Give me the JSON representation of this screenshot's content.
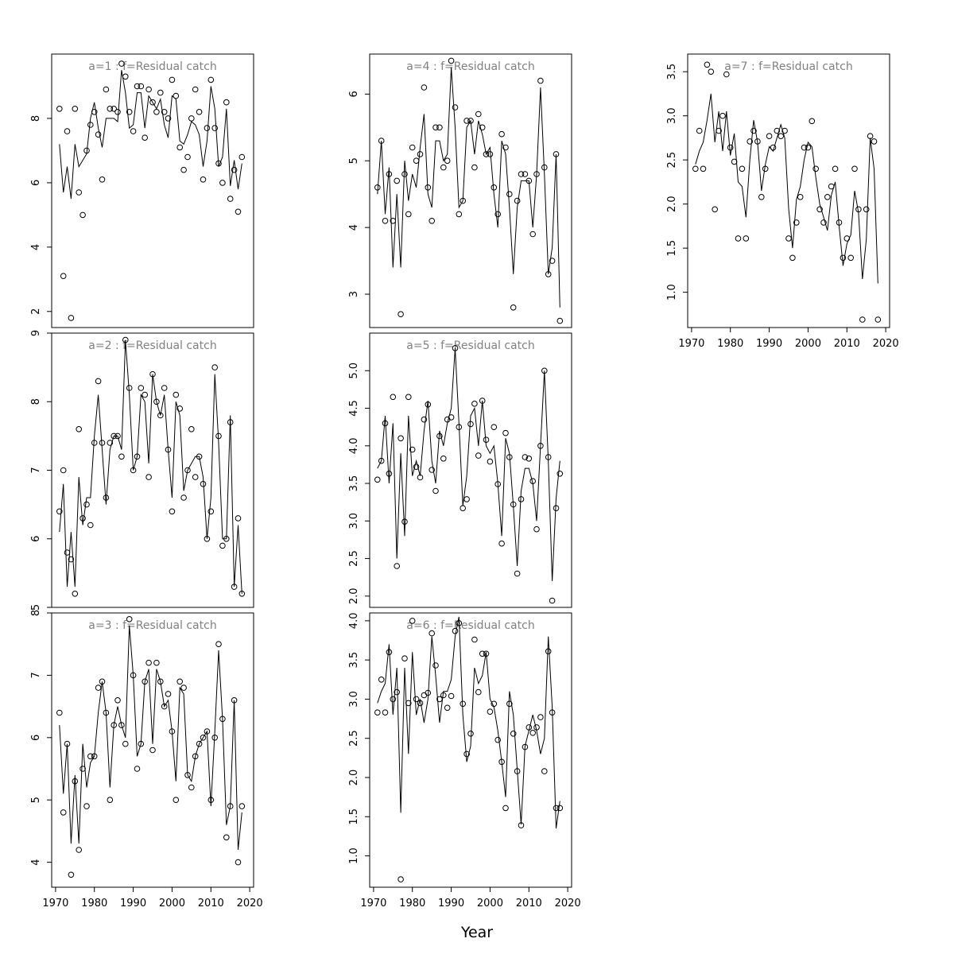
{
  "chart_data": {
    "type": "scatter",
    "xlabel": "Year",
    "x_ticks": [
      "1970",
      "1980",
      "1990",
      "2000",
      "2010",
      "2020"
    ],
    "x": [
      1971,
      1972,
      1973,
      1974,
      1975,
      1976,
      1977,
      1978,
      1979,
      1980,
      1981,
      1982,
      1983,
      1984,
      1985,
      1986,
      1987,
      1988,
      1989,
      1990,
      1991,
      1992,
      1993,
      1994,
      1995,
      1996,
      1997,
      1998,
      1999,
      2000,
      2001,
      2002,
      2003,
      2004,
      2005,
      2006,
      2007,
      2008,
      2009,
      2010,
      2011,
      2012,
      2013,
      2014,
      2015,
      2016,
      2017,
      2018
    ],
    "xlim": [
      1969,
      2021
    ],
    "panels": [
      {
        "title": "a=1  :  f=Residual catch",
        "ylim": [
          1.5,
          10
        ],
        "y_ticks": [
          2,
          4,
          6,
          8
        ],
        "series": [
          {
            "type": "points",
            "values": [
              8.3,
              3.1,
              7.6,
              1.8,
              8.3,
              5.7,
              5.0,
              7.0,
              7.8,
              8.2,
              7.5,
              6.1,
              8.9,
              8.3,
              8.3,
              8.2,
              9.7,
              9.3,
              8.2,
              7.6,
              9.0,
              9.0,
              7.4,
              8.9,
              8.5,
              8.2,
              8.8,
              8.2,
              8.0,
              9.2,
              8.7,
              7.1,
              6.4,
              6.8,
              8.0,
              8.9,
              8.2,
              6.1,
              7.7,
              9.2,
              7.7,
              6.6,
              6.0,
              8.5,
              5.5,
              6.4,
              5.1,
              6.8
            ]
          },
          {
            "type": "line",
            "values": [
              7.2,
              5.7,
              6.5,
              5.5,
              7.2,
              6.5,
              6.7,
              6.9,
              8.0,
              8.5,
              7.7,
              7.1,
              8.0,
              8.0,
              8.0,
              7.9,
              9.5,
              8.8,
              7.7,
              7.8,
              8.8,
              8.8,
              7.7,
              8.7,
              8.5,
              8.3,
              8.6,
              7.8,
              7.4,
              8.7,
              8.6,
              7.3,
              7.2,
              7.5,
              7.9,
              7.8,
              7.5,
              6.5,
              7.3,
              9.0,
              8.3,
              6.5,
              6.8,
              8.3,
              5.9,
              6.7,
              5.8,
              6.6
            ]
          }
        ]
      },
      {
        "title": "a=2  :  f=Residual catch",
        "ylim": [
          5,
          9
        ],
        "y_ticks": [
          5,
          6,
          7,
          8,
          9
        ],
        "series": [
          {
            "type": "points",
            "values": [
              6.4,
              7.0,
              5.8,
              5.7,
              5.2,
              7.6,
              6.3,
              6.5,
              6.2,
              7.4,
              8.3,
              7.4,
              6.6,
              7.4,
              7.5,
              7.5,
              7.2,
              8.9,
              8.2,
              7.0,
              7.2,
              8.2,
              8.1,
              6.9,
              8.4,
              8.0,
              7.8,
              8.2,
              7.3,
              6.4,
              8.1,
              7.9,
              6.6,
              7.0,
              7.6,
              6.9,
              7.2,
              6.8,
              6.0,
              6.4,
              8.5,
              7.5,
              5.9,
              6.0,
              7.7,
              5.3,
              6.3,
              5.2
            ]
          },
          {
            "type": "line",
            "values": [
              6.1,
              6.8,
              5.3,
              6.1,
              5.3,
              6.9,
              6.2,
              6.6,
              6.6,
              7.5,
              8.1,
              7.3,
              6.5,
              7.3,
              7.5,
              7.5,
              7.3,
              8.9,
              8.1,
              7.0,
              7.2,
              8.1,
              8.0,
              7.1,
              8.4,
              8.0,
              7.8,
              8.1,
              7.3,
              6.6,
              8.0,
              7.8,
              6.7,
              7.0,
              7.1,
              7.2,
              7.2,
              6.9,
              6.0,
              6.6,
              8.4,
              7.4,
              6.0,
              6.0,
              7.8,
              5.3,
              6.2,
              5.2
            ]
          }
        ]
      },
      {
        "title": "a=3  :  f=Residual catch",
        "ylim": [
          3.6,
          8.0
        ],
        "y_ticks": [
          4,
          5,
          6,
          7,
          8
        ],
        "series": [
          {
            "type": "points",
            "values": [
              6.4,
              4.8,
              5.9,
              3.8,
              5.3,
              4.2,
              5.5,
              4.9,
              5.7,
              5.7,
              6.8,
              6.9,
              6.4,
              5.0,
              6.2,
              6.6,
              6.2,
              5.9,
              7.9,
              7.0,
              5.5,
              5.9,
              6.9,
              7.2,
              5.8,
              7.2,
              6.9,
              6.5,
              6.7,
              6.1,
              5.0,
              6.9,
              6.8,
              5.4,
              5.2,
              5.7,
              5.9,
              6.0,
              6.1,
              5.0,
              6.0,
              7.5,
              6.3,
              4.4,
              4.9,
              6.6,
              4.0,
              4.9
            ]
          },
          {
            "type": "line",
            "values": [
              6.2,
              5.1,
              5.9,
              4.3,
              5.4,
              4.3,
              5.9,
              5.2,
              5.6,
              5.7,
              6.4,
              6.9,
              6.4,
              5.2,
              6.2,
              6.5,
              6.2,
              6.0,
              7.8,
              7.0,
              5.7,
              5.9,
              6.9,
              7.1,
              5.9,
              7.1,
              6.9,
              6.5,
              6.6,
              6.1,
              5.3,
              6.8,
              6.7,
              5.4,
              5.3,
              5.7,
              5.9,
              6.0,
              6.1,
              4.9,
              6.1,
              7.4,
              6.3,
              4.6,
              4.9,
              6.6,
              4.2,
              4.8
            ]
          }
        ]
      },
      {
        "title": "a=4  :  f=Residual catch",
        "ylim": [
          2.5,
          6.6
        ],
        "y_ticks": [
          3,
          4,
          5,
          6
        ],
        "series": [
          {
            "type": "points",
            "values": [
              4.6,
              5.3,
              4.1,
              4.8,
              4.1,
              4.7,
              2.7,
              4.8,
              4.2,
              5.2,
              5.0,
              5.1,
              6.1,
              4.6,
              4.1,
              5.5,
              5.5,
              4.9,
              5.0,
              6.5,
              5.8,
              4.2,
              4.4,
              5.6,
              5.6,
              4.9,
              5.7,
              5.5,
              5.1,
              5.1,
              4.6,
              4.2,
              5.4,
              5.2,
              4.5,
              2.8,
              4.4,
              4.8,
              4.8,
              4.7,
              3.9,
              4.8,
              6.2,
              4.9,
              3.3,
              3.5,
              5.1,
              2.6
            ]
          },
          {
            "type": "line",
            "values": [
              4.5,
              5.3,
              4.2,
              4.9,
              3.4,
              4.5,
              3.4,
              5.0,
              4.4,
              4.8,
              4.6,
              5.2,
              5.7,
              4.5,
              4.3,
              5.3,
              5.3,
              5.0,
              5.1,
              6.4,
              5.5,
              4.3,
              4.4,
              5.5,
              5.6,
              5.1,
              5.6,
              5.4,
              5.1,
              5.2,
              4.5,
              4.0,
              5.3,
              5.1,
              4.3,
              3.3,
              4.3,
              4.7,
              4.7,
              4.7,
              4.0,
              4.8,
              6.1,
              4.8,
              3.3,
              3.7,
              5.1,
              2.8
            ]
          }
        ]
      },
      {
        "title": "a=5  :  f=Residual catch",
        "ylim": [
          1.85,
          5.5
        ],
        "y_ticks": [
          2.0,
          2.5,
          3.0,
          3.5,
          4.0,
          4.5,
          5.0
        ],
        "series": [
          {
            "type": "points",
            "values": [
              3.55,
              3.8,
              4.3,
              3.63,
              4.65,
              2.4,
              4.1,
              2.99,
              4.65,
              3.95,
              3.72,
              3.58,
              4.35,
              4.55,
              3.68,
              3.4,
              4.13,
              3.83,
              4.35,
              4.38,
              5.3,
              4.25,
              3.17,
              3.29,
              4.29,
              4.56,
              3.87,
              4.6,
              4.08,
              3.79,
              4.25,
              3.49,
              2.7,
              4.17,
              3.85,
              3.22,
              2.3,
              3.29,
              3.85,
              3.83,
              3.53,
              2.89,
              4.0,
              5.0,
              3.85,
              1.94,
              3.17,
              3.63
            ]
          },
          {
            "type": "line",
            "values": [
              3.7,
              3.8,
              4.4,
              3.5,
              4.3,
              2.5,
              3.9,
              2.8,
              4.4,
              3.6,
              3.8,
              3.6,
              4.2,
              4.6,
              3.8,
              3.5,
              4.2,
              4.0,
              4.3,
              4.5,
              5.3,
              4.3,
              3.2,
              3.6,
              4.4,
              4.5,
              4.0,
              4.6,
              4.0,
              3.9,
              4.0,
              3.5,
              2.8,
              4.1,
              3.9,
              3.2,
              2.4,
              3.4,
              3.7,
              3.7,
              3.5,
              3.0,
              4.0,
              5.0,
              3.8,
              2.2,
              3.3,
              3.8
            ]
          }
        ]
      },
      {
        "title": "a=6  :  f=Residual catch",
        "ylim": [
          0.6,
          4.1
        ],
        "y_ticks": [
          1.0,
          1.5,
          2.0,
          2.5,
          3.0,
          3.5,
          4.0
        ],
        "series": [
          {
            "type": "points",
            "values": [
              2.83,
              3.25,
              2.83,
              3.6,
              3.0,
              3.09,
              0.7,
              3.52,
              2.95,
              4.0,
              3.0,
              2.95,
              3.05,
              3.08,
              3.84,
              3.43,
              3.0,
              3.05,
              2.89,
              3.04,
              3.87,
              3.97,
              2.94,
              2.3,
              2.56,
              3.76,
              3.09,
              3.58,
              3.58,
              2.84,
              2.94,
              2.48,
              2.2,
              1.61,
              2.94,
              2.56,
              2.08,
              1.39,
              2.39,
              2.64,
              2.57,
              2.64,
              2.77,
              2.08,
              3.61,
              2.83,
              1.61,
              1.61
            ]
          },
          {
            "type": "line",
            "values": [
              2.95,
              3.1,
              3.2,
              3.7,
              2.8,
              3.4,
              1.55,
              3.4,
              2.3,
              3.6,
              2.8,
              3.0,
              2.7,
              3.0,
              3.8,
              3.3,
              2.7,
              3.1,
              3.1,
              3.25,
              3.8,
              4.05,
              2.8,
              2.2,
              2.4,
              3.4,
              3.2,
              3.3,
              3.6,
              3.0,
              2.9,
              2.6,
              2.2,
              1.75,
              3.1,
              2.8,
              2.1,
              1.4,
              2.4,
              2.6,
              2.8,
              2.6,
              2.3,
              2.5,
              3.8,
              2.9,
              1.35,
              1.7
            ]
          }
        ]
      },
      {
        "title": "a=7  :  f=Residual catch",
        "ylim": [
          0.6,
          3.7
        ],
        "y_ticks": [
          1.0,
          1.5,
          2.0,
          2.5,
          3.0,
          3.5
        ],
        "series": [
          {
            "type": "points",
            "values": [
              2.4,
              2.83,
              2.4,
              3.58,
              3.5,
              1.94,
              2.83,
              3.0,
              3.47,
              2.64,
              2.48,
              1.61,
              2.4,
              1.61,
              2.71,
              2.83,
              2.71,
              2.08,
              2.4,
              2.77,
              2.64,
              2.83,
              2.77,
              2.83,
              1.61,
              1.39,
              1.79,
              2.08,
              2.64,
              2.64,
              2.94,
              2.4,
              1.94,
              1.79,
              2.08,
              2.2,
              2.4,
              1.79,
              1.39,
              1.61,
              1.39,
              2.4,
              1.94,
              0.69,
              1.94,
              2.77,
              2.71,
              0.69
            ]
          },
          {
            "type": "line",
            "values": [
              2.45,
              2.6,
              2.7,
              2.95,
              3.25,
              2.7,
              3.05,
              2.6,
              3.05,
              2.55,
              2.8,
              2.25,
              2.2,
              1.85,
              2.5,
              2.95,
              2.7,
              2.15,
              2.45,
              2.65,
              2.6,
              2.75,
              2.9,
              2.75,
              1.95,
              1.5,
              2.05,
              2.2,
              2.5,
              2.7,
              2.65,
              2.3,
              2.0,
              1.85,
              1.7,
              2.1,
              2.25,
              1.75,
              1.3,
              1.55,
              1.65,
              2.15,
              1.9,
              1.15,
              1.6,
              2.75,
              2.4,
              1.1
            ]
          }
        ]
      }
    ]
  }
}
